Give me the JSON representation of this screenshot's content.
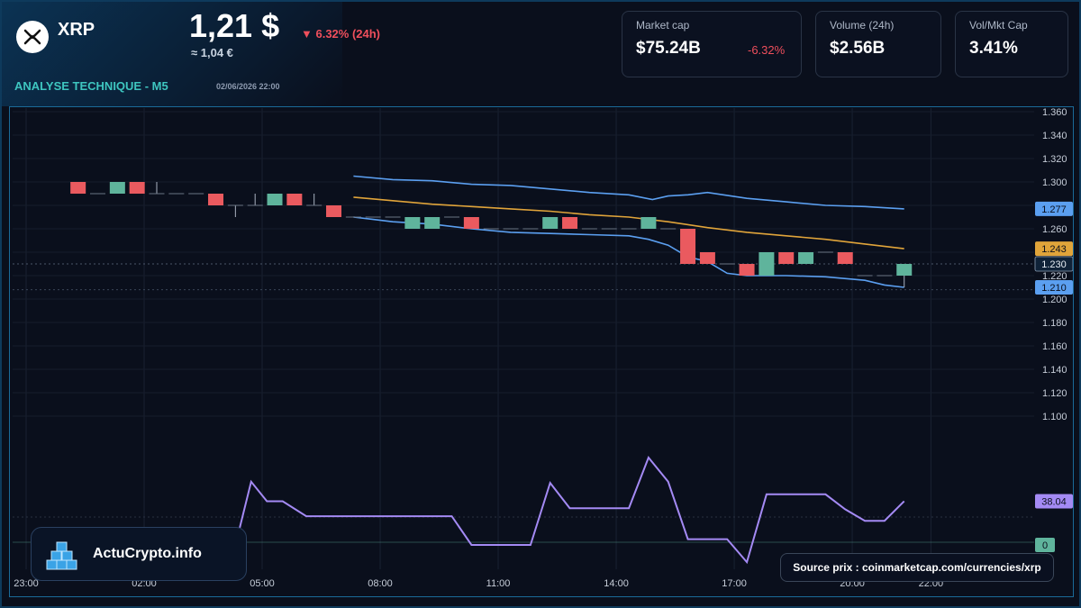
{
  "header": {
    "ticker": "XRP",
    "price": "1,21 $",
    "price_eur": "≈ 1,04 €",
    "change": "▼ 6.32% (24h)",
    "section_title": "ANALYSE TECHNIQUE - M5",
    "timestamp": "02/06/2026 22:00"
  },
  "stats": [
    {
      "label": "Market cap",
      "value": "$75.24B",
      "delta": "-6.32%"
    },
    {
      "label": "Volume (24h)",
      "value": "$2.56B"
    },
    {
      "label": "Vol/Mkt Cap",
      "value": "3.41%"
    }
  ],
  "branding": {
    "name": "ActuCrypto.info",
    "icon": "cubes-logo-icon"
  },
  "source_note": "Source prix : coinmarketcap.com/currencies/xrp",
  "colors": {
    "bullish": "#5fb49c",
    "bearish": "#ea5a5f",
    "bollinger": "#5b9ff0",
    "ma": "#e0a43a",
    "rsi": "#a48af4",
    "accent": "#3ec6c0"
  },
  "chart_data": {
    "type": "candlestick",
    "x_ticks": [
      "23:00",
      "02:00",
      "05:00",
      "08:00",
      "11:00",
      "14:00",
      "17:00",
      "20:00",
      "22:00"
    ],
    "y_ticks": [
      "1.360",
      "1.340",
      "1.320",
      "1.300",
      "1.280",
      "1.260",
      "1.240",
      "1.220",
      "1.200",
      "1.180",
      "1.160",
      "1.140",
      "1.120",
      "1.100"
    ],
    "ylim": [
      1.1,
      1.36
    ],
    "price_labels": [
      {
        "text": "1.277",
        "value": 1.277,
        "color": "#5b9ff0"
      },
      {
        "text": "1.243",
        "value": 1.243,
        "color": "#e0a43a"
      },
      {
        "text": "1.230",
        "value": 1.23,
        "color": "#0f2238"
      },
      {
        "text": "1.210",
        "value": 1.21,
        "color": "#5b9ff0"
      }
    ],
    "rsi_labels": [
      {
        "text": "38.04",
        "value": 38.04,
        "color": "#a48af4"
      },
      {
        "text": "0",
        "value": 0,
        "color": "#5fb49c"
      }
    ],
    "current_price": 1.23,
    "candles": [
      {
        "t": 1.0,
        "o": 1.3,
        "c": 1.29,
        "h": 1.3,
        "l": 1.29
      },
      {
        "t": 1.5,
        "o": 1.29,
        "c": 1.29,
        "h": 1.29,
        "l": 1.29
      },
      {
        "t": 2.0,
        "o": 1.29,
        "c": 1.3,
        "h": 1.3,
        "l": 1.29
      },
      {
        "t": 2.5,
        "o": 1.3,
        "c": 1.29,
        "h": 1.3,
        "l": 1.29
      },
      {
        "t": 3.0,
        "o": 1.29,
        "c": 1.29,
        "h": 1.3,
        "l": 1.29
      },
      {
        "t": 3.5,
        "o": 1.29,
        "c": 1.29,
        "h": 1.29,
        "l": 1.29
      },
      {
        "t": 4.0,
        "o": 1.29,
        "c": 1.29,
        "h": 1.29,
        "l": 1.29
      },
      {
        "t": 4.5,
        "o": 1.29,
        "c": 1.28,
        "h": 1.29,
        "l": 1.28
      },
      {
        "t": 5.0,
        "o": 1.28,
        "c": 1.28,
        "h": 1.28,
        "l": 1.27
      },
      {
        "t": 5.5,
        "o": 1.28,
        "c": 1.28,
        "h": 1.29,
        "l": 1.28
      },
      {
        "t": 6.0,
        "o": 1.28,
        "c": 1.29,
        "h": 1.29,
        "l": 1.28
      },
      {
        "t": 6.5,
        "o": 1.29,
        "c": 1.28,
        "h": 1.29,
        "l": 1.28
      },
      {
        "t": 7.0,
        "o": 1.28,
        "c": 1.28,
        "h": 1.29,
        "l": 1.28
      },
      {
        "t": 7.5,
        "o": 1.28,
        "c": 1.27,
        "h": 1.28,
        "l": 1.27
      },
      {
        "t": 8.0,
        "o": 1.27,
        "c": 1.27,
        "h": 1.27,
        "l": 1.27
      },
      {
        "t": 8.5,
        "o": 1.27,
        "c": 1.27,
        "h": 1.27,
        "l": 1.27
      },
      {
        "t": 9.0,
        "o": 1.27,
        "c": 1.27,
        "h": 1.27,
        "l": 1.27
      },
      {
        "t": 9.5,
        "o": 1.26,
        "c": 1.27,
        "h": 1.27,
        "l": 1.26
      },
      {
        "t": 10.0,
        "o": 1.26,
        "c": 1.27,
        "h": 1.27,
        "l": 1.26
      },
      {
        "t": 10.5,
        "o": 1.27,
        "c": 1.27,
        "h": 1.27,
        "l": 1.27
      },
      {
        "t": 11.0,
        "o": 1.27,
        "c": 1.26,
        "h": 1.27,
        "l": 1.26
      },
      {
        "t": 11.5,
        "o": 1.26,
        "c": 1.26,
        "h": 1.26,
        "l": 1.26
      },
      {
        "t": 12.0,
        "o": 1.26,
        "c": 1.26,
        "h": 1.26,
        "l": 1.26
      },
      {
        "t": 12.5,
        "o": 1.26,
        "c": 1.26,
        "h": 1.26,
        "l": 1.26
      },
      {
        "t": 13.0,
        "o": 1.26,
        "c": 1.27,
        "h": 1.27,
        "l": 1.26
      },
      {
        "t": 13.5,
        "o": 1.27,
        "c": 1.26,
        "h": 1.27,
        "l": 1.26
      },
      {
        "t": 14.0,
        "o": 1.26,
        "c": 1.26,
        "h": 1.26,
        "l": 1.26
      },
      {
        "t": 14.5,
        "o": 1.26,
        "c": 1.26,
        "h": 1.26,
        "l": 1.26
      },
      {
        "t": 15.0,
        "o": 1.26,
        "c": 1.26,
        "h": 1.26,
        "l": 1.26
      },
      {
        "t": 15.5,
        "o": 1.26,
        "c": 1.27,
        "h": 1.27,
        "l": 1.26
      },
      {
        "t": 16.0,
        "o": 1.26,
        "c": 1.26,
        "h": 1.26,
        "l": 1.26
      },
      {
        "t": 16.5,
        "o": 1.26,
        "c": 1.23,
        "h": 1.26,
        "l": 1.23
      },
      {
        "t": 17.0,
        "o": 1.24,
        "c": 1.23,
        "h": 1.24,
        "l": 1.23
      },
      {
        "t": 17.5,
        "o": 1.23,
        "c": 1.23,
        "h": 1.23,
        "l": 1.23
      },
      {
        "t": 18.0,
        "o": 1.23,
        "c": 1.22,
        "h": 1.23,
        "l": 1.22
      },
      {
        "t": 18.5,
        "o": 1.22,
        "c": 1.24,
        "h": 1.24,
        "l": 1.22
      },
      {
        "t": 19.0,
        "o": 1.24,
        "c": 1.23,
        "h": 1.24,
        "l": 1.23
      },
      {
        "t": 19.5,
        "o": 1.23,
        "c": 1.24,
        "h": 1.24,
        "l": 1.23
      },
      {
        "t": 20.0,
        "o": 1.24,
        "c": 1.24,
        "h": 1.24,
        "l": 1.24
      },
      {
        "t": 20.5,
        "o": 1.24,
        "c": 1.23,
        "h": 1.24,
        "l": 1.23
      },
      {
        "t": 21.0,
        "o": 1.22,
        "c": 1.22,
        "h": 1.22,
        "l": 1.22
      },
      {
        "t": 21.5,
        "o": 1.22,
        "c": 1.22,
        "h": 1.22,
        "l": 1.22
      },
      {
        "t": 22.0,
        "o": 1.22,
        "c": 1.23,
        "h": 1.23,
        "l": 1.21
      }
    ],
    "bollinger_upper": [
      [
        8.0,
        1.305
      ],
      [
        9.0,
        1.302
      ],
      [
        10.0,
        1.301
      ],
      [
        11.0,
        1.298
      ],
      [
        12.0,
        1.297
      ],
      [
        13.0,
        1.294
      ],
      [
        14.0,
        1.291
      ],
      [
        15.0,
        1.289
      ],
      [
        15.6,
        1.285
      ],
      [
        16.0,
        1.288
      ],
      [
        16.5,
        1.289
      ],
      [
        17.0,
        1.291
      ],
      [
        18.0,
        1.286
      ],
      [
        19.0,
        1.283
      ],
      [
        20.0,
        1.28
      ],
      [
        21.0,
        1.279
      ],
      [
        22.0,
        1.277
      ]
    ],
    "bollinger_lower": [
      [
        8.0,
        1.27
      ],
      [
        8.5,
        1.268
      ],
      [
        9.0,
        1.266
      ],
      [
        10.0,
        1.264
      ],
      [
        11.0,
        1.26
      ],
      [
        12.0,
        1.257
      ],
      [
        13.0,
        1.256
      ],
      [
        14.0,
        1.255
      ],
      [
        15.0,
        1.254
      ],
      [
        15.5,
        1.251
      ],
      [
        16.0,
        1.246
      ],
      [
        16.5,
        1.236
      ],
      [
        17.0,
        1.232
      ],
      [
        17.5,
        1.222
      ],
      [
        18.0,
        1.22
      ],
      [
        19.0,
        1.22
      ],
      [
        20.0,
        1.219
      ],
      [
        21.0,
        1.216
      ],
      [
        21.5,
        1.212
      ],
      [
        22.0,
        1.21
      ]
    ],
    "moving_average": [
      [
        8.0,
        1.287
      ],
      [
        9.0,
        1.284
      ],
      [
        10.0,
        1.281
      ],
      [
        11.0,
        1.279
      ],
      [
        12.0,
        1.277
      ],
      [
        13.0,
        1.275
      ],
      [
        14.0,
        1.272
      ],
      [
        15.0,
        1.27
      ],
      [
        16.0,
        1.266
      ],
      [
        17.0,
        1.261
      ],
      [
        18.0,
        1.257
      ],
      [
        19.0,
        1.254
      ],
      [
        20.0,
        1.251
      ],
      [
        21.0,
        1.247
      ],
      [
        22.0,
        1.243
      ]
    ],
    "rsi": [
      [
        5.0,
        0.0
      ],
      [
        5.4,
        55.0
      ],
      [
        5.8,
        38.0
      ],
      [
        6.2,
        38.0
      ],
      [
        6.8,
        25.0
      ],
      [
        8.0,
        25.0
      ],
      [
        9.0,
        25.0
      ],
      [
        10.0,
        25.0
      ],
      [
        10.5,
        25.0
      ],
      [
        11.0,
        0.0
      ],
      [
        12.0,
        0.0
      ],
      [
        12.5,
        0.0
      ],
      [
        13.0,
        54.0
      ],
      [
        13.5,
        32.0
      ],
      [
        14.0,
        32.0
      ],
      [
        15.0,
        32.0
      ],
      [
        15.5,
        76.0
      ],
      [
        16.0,
        55.0
      ],
      [
        16.5,
        5.0
      ],
      [
        17.0,
        5.0
      ],
      [
        17.5,
        5.0
      ],
      [
        18.0,
        -15.0
      ],
      [
        18.5,
        44.0
      ],
      [
        19.0,
        44.0
      ],
      [
        20.0,
        44.0
      ],
      [
        20.5,
        31.0
      ],
      [
        21.0,
        21.0
      ],
      [
        21.5,
        21.0
      ],
      [
        22.0,
        38.04
      ]
    ]
  }
}
